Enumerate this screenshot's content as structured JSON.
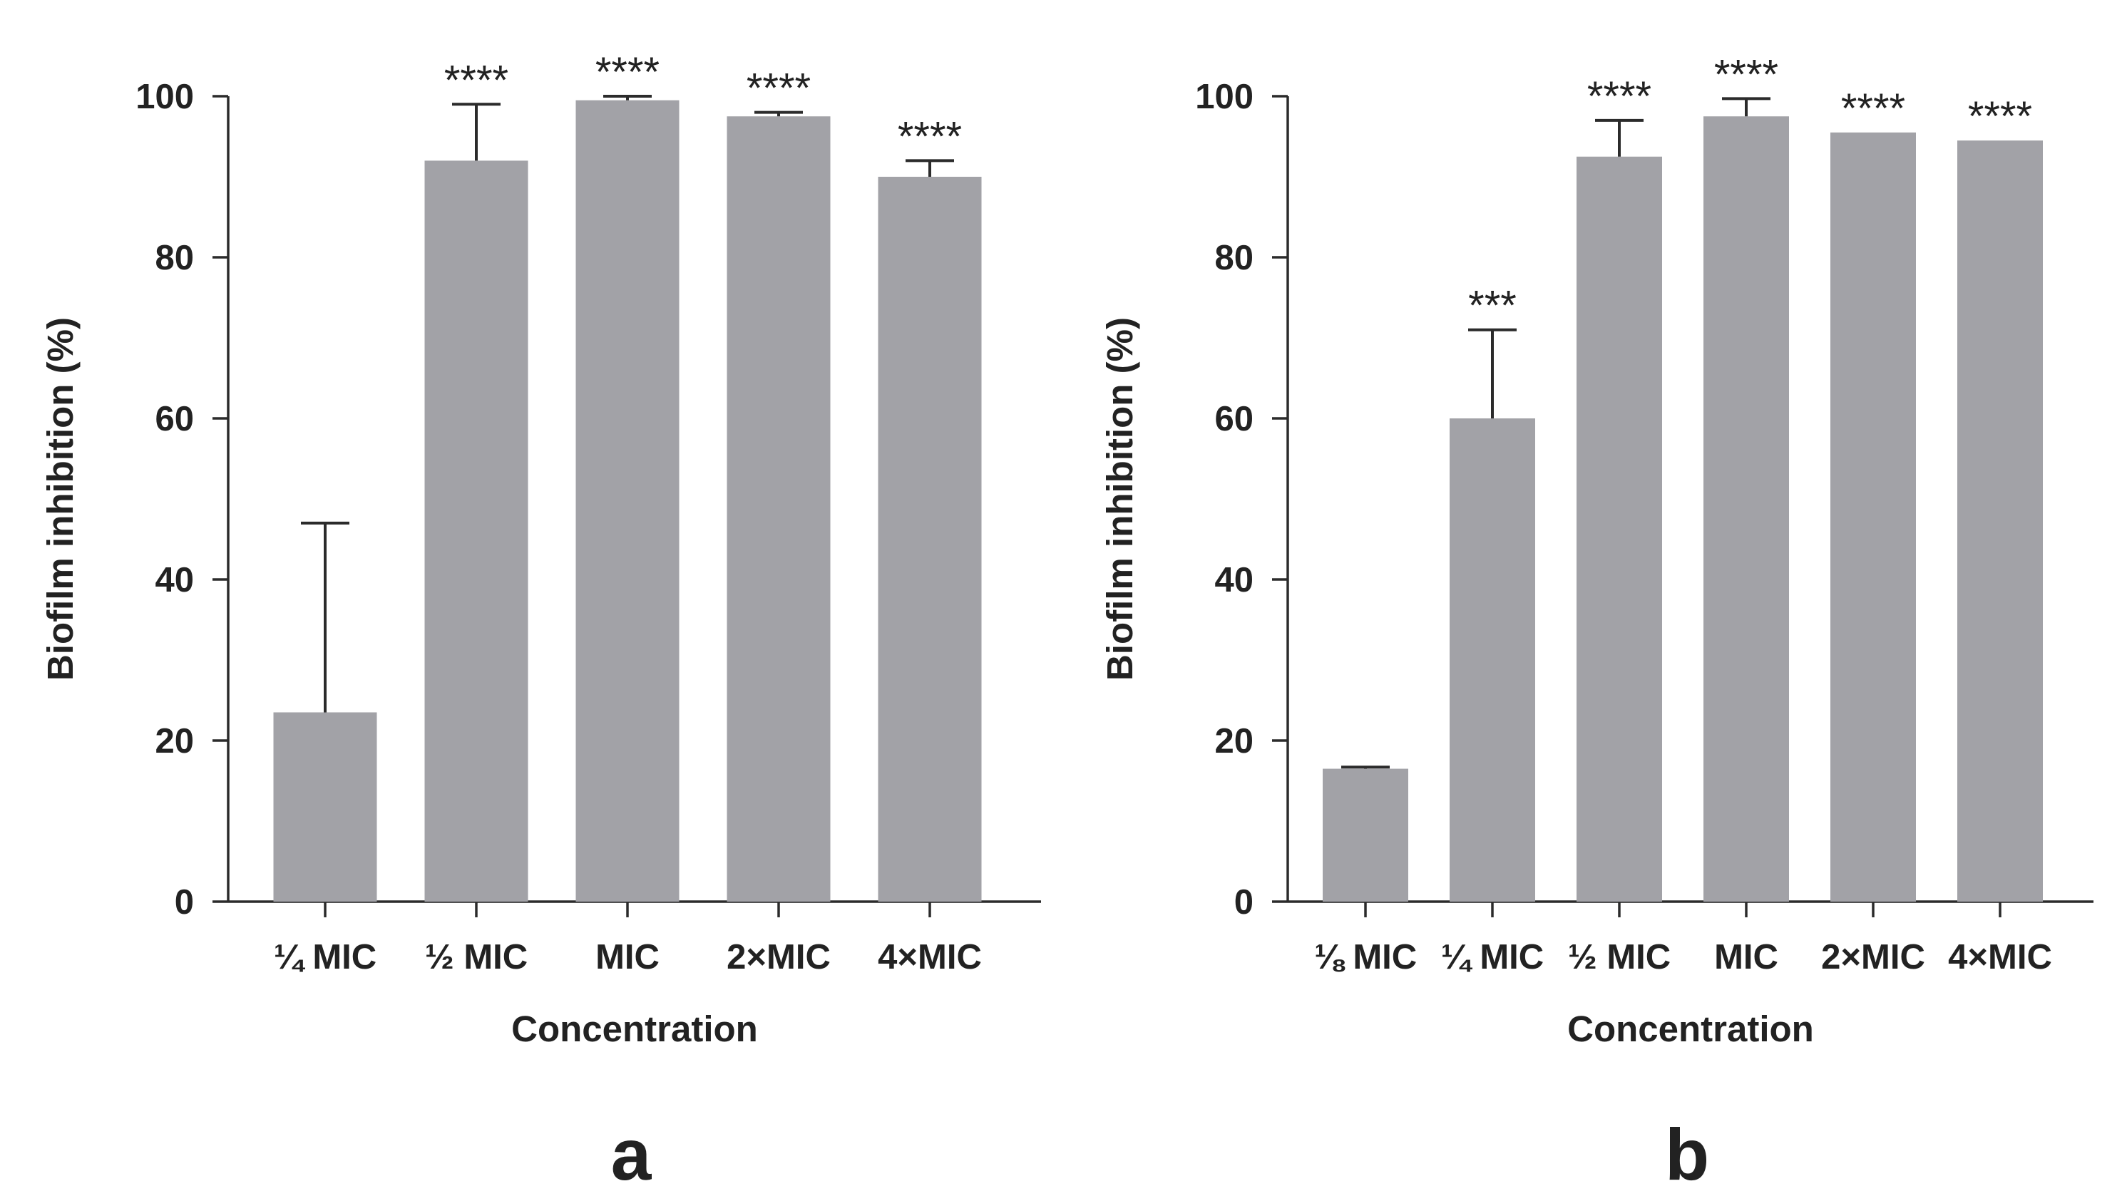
{
  "chart_data": [
    {
      "type": "bar",
      "panel_label": "a",
      "categories": [
        "¼ MIC",
        "½ MIC",
        "MIC",
        "2×MIC",
        "4×MIC"
      ],
      "values": [
        23.5,
        92,
        99.5,
        97.5,
        90
      ],
      "error_upper": [
        47,
        99,
        100,
        98,
        92
      ],
      "significance": [
        "",
        "****",
        "****",
        "****",
        "****"
      ],
      "xlabel": "Concentration",
      "ylabel": "Biofilm inhibition (%)",
      "ylim": [
        0,
        100
      ],
      "yticks": [
        0,
        20,
        40,
        60,
        80,
        100
      ],
      "bar_color": "#a2a2a7",
      "grid": false
    },
    {
      "type": "bar",
      "panel_label": "b",
      "categories": [
        "⅛ MIC",
        "¼ MIC",
        "½ MIC",
        "MIC",
        "2×MIC",
        "4×MIC"
      ],
      "values": [
        16.5,
        60,
        92.5,
        97.5,
        95.5,
        94.5
      ],
      "error_upper": [
        16.7,
        71,
        97,
        99.7,
        95.5,
        94.5
      ],
      "significance": [
        "",
        "***",
        "****",
        "****",
        "****",
        "****"
      ],
      "xlabel": "Concentration",
      "ylabel": "Biofilm inhibition (%)",
      "ylim": [
        0,
        100
      ],
      "yticks": [
        0,
        20,
        40,
        60,
        80,
        100
      ],
      "bar_color": "#a2a2a7",
      "grid": false
    }
  ]
}
